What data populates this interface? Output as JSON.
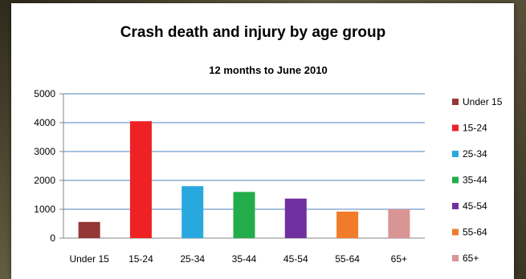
{
  "chart_data": {
    "type": "bar",
    "title": "Crash death and injury by age group",
    "subtitle": "12 months to June 2010",
    "xlabel": "",
    "ylabel": "",
    "ylim": [
      0,
      5000
    ],
    "yticks": [
      "0",
      "1000",
      "2000",
      "3000",
      "4000",
      "5000"
    ],
    "categories": [
      "Under 15",
      "15-24",
      "25-34",
      "35-44",
      "45-54",
      "55-64",
      "65+"
    ],
    "values": [
      560,
      4050,
      1800,
      1600,
      1370,
      920,
      1000
    ],
    "colors": [
      "#953735",
      "#ee2124",
      "#29a8df",
      "#23ad4a",
      "#7030a0",
      "#f07c2a",
      "#d99594"
    ],
    "grid": true,
    "legend_position": "right"
  }
}
